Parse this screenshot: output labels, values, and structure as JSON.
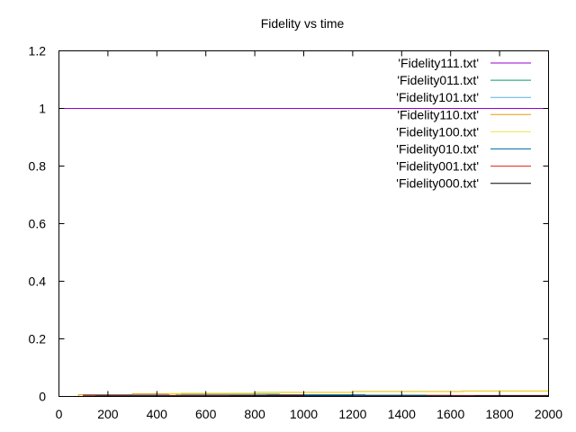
{
  "chart_data": {
    "type": "line",
    "title": "Fidelity vs time",
    "xlabel": "",
    "ylabel": "",
    "xlim": [
      0,
      2000
    ],
    "ylim": [
      0,
      1.2
    ],
    "xticks": [
      "0",
      "200",
      "400",
      "600",
      "800",
      "1000",
      "1200",
      "1400",
      "1600",
      "1800",
      "2000"
    ],
    "yticks": [
      "0",
      "0.2",
      "0.4",
      "0.6",
      "0.8",
      "1",
      "1.2"
    ],
    "grid": false,
    "legend_position": "top-right",
    "series": [
      {
        "name": "'Fidelity111.txt'",
        "color": "#9400d3",
        "points": [
          [
            0,
            1
          ],
          [
            2000,
            1
          ]
        ]
      },
      {
        "name": "'Fidelity011.txt'",
        "color": "#009e73",
        "points": [
          [
            0,
            0
          ],
          [
            120,
            0.003
          ],
          [
            480,
            0.008
          ],
          [
            900,
            0.004
          ],
          [
            1300,
            0.003
          ],
          [
            1700,
            0.003
          ],
          [
            2000,
            0.004
          ]
        ]
      },
      {
        "name": "'Fidelity101.txt'",
        "color": "#56b4e9",
        "points": [
          [
            0,
            0
          ],
          [
            150,
            0.004
          ],
          [
            500,
            0.006
          ],
          [
            1000,
            0.005
          ],
          [
            1500,
            0.004
          ],
          [
            2000,
            0.005
          ]
        ]
      },
      {
        "name": "'Fidelity110.txt'",
        "color": "#e69f00",
        "points": [
          [
            0,
            0
          ],
          [
            80,
            0.006
          ],
          [
            300,
            0.009
          ],
          [
            500,
            0.011
          ],
          [
            800,
            0.014
          ],
          [
            1200,
            0.017
          ],
          [
            1650,
            0.019
          ],
          [
            2000,
            0.02
          ]
        ]
      },
      {
        "name": "'Fidelity100.txt'",
        "color": "#f0e442",
        "points": [
          [
            0,
            0
          ],
          [
            100,
            0.004
          ],
          [
            450,
            0.01
          ],
          [
            800,
            0.013
          ],
          [
            1200,
            0.016
          ],
          [
            1650,
            0.018
          ],
          [
            2000,
            0.019
          ]
        ]
      },
      {
        "name": "'Fidelity010.txt'",
        "color": "#0072b2",
        "points": [
          [
            0,
            0
          ],
          [
            100,
            0.005
          ],
          [
            450,
            0.003
          ],
          [
            850,
            0.006
          ],
          [
            1250,
            0.004
          ],
          [
            1600,
            0.002
          ],
          [
            2000,
            0.003
          ]
        ]
      },
      {
        "name": "'Fidelity001.txt'",
        "color": "#e51e10",
        "points": [
          [
            0,
            0
          ],
          [
            100,
            0.003
          ],
          [
            500,
            0.004
          ],
          [
            1000,
            0.002
          ],
          [
            1500,
            0.003
          ],
          [
            2000,
            0.002
          ]
        ]
      },
      {
        "name": "'Fidelity000.txt'",
        "color": "#000000",
        "points": [
          [
            0,
            0
          ],
          [
            150,
            0.001
          ],
          [
            700,
            0.002
          ],
          [
            1200,
            0.001
          ],
          [
            1700,
            0.002
          ],
          [
            2000,
            0.001
          ]
        ]
      }
    ]
  }
}
